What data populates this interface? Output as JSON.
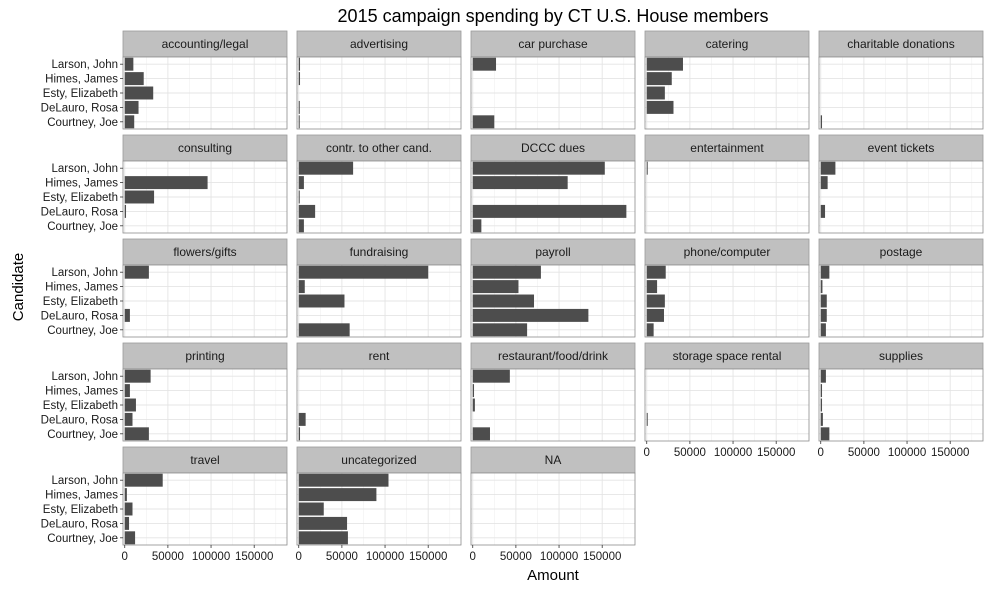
{
  "chart_data": {
    "type": "bar",
    "orientation": "horizontal",
    "faceted": true,
    "title": "2015 campaign spending by CT U.S. House members",
    "xlabel": "Amount",
    "ylabel": "Candidate",
    "candidates": [
      "Larson, John",
      "Himes, James",
      "Esty, Elizabeth",
      "DeLauro, Rosa",
      "Courtney, Joe"
    ],
    "xlim": [
      -2000,
      188000
    ],
    "x_ticks": [
      0,
      50000,
      100000,
      150000
    ],
    "x_tick_labels": [
      "0",
      "50000",
      "100000",
      "150000"
    ],
    "bar_color": "#4d4d4d",
    "strip_color": "#c0c0c0",
    "grid": true,
    "facets": [
      {
        "label": "accounting/legal",
        "values": [
          10000,
          22000,
          33000,
          16000,
          11000
        ]
      },
      {
        "label": "advertising",
        "values": [
          1500,
          1500,
          0,
          1200,
          500
        ]
      },
      {
        "label": "car purchase",
        "values": [
          27000,
          0,
          0,
          0,
          25000
        ]
      },
      {
        "label": "catering",
        "values": [
          42000,
          29000,
          21000,
          31000,
          0
        ]
      },
      {
        "label": "charitable donations",
        "values": [
          0,
          0,
          0,
          0,
          1500
        ]
      },
      {
        "label": "consulting",
        "values": [
          0,
          96000,
          34000,
          1500,
          0
        ]
      },
      {
        "label": "contr. to other cand.",
        "values": [
          63000,
          6000,
          1000,
          19000,
          6000
        ]
      },
      {
        "label": "DCCC dues",
        "values": [
          153000,
          110000,
          0,
          178000,
          10000
        ]
      },
      {
        "label": "entertainment",
        "values": [
          1000,
          0,
          0,
          0,
          0
        ]
      },
      {
        "label": "event tickets",
        "values": [
          17000,
          8000,
          0,
          5000,
          0
        ]
      },
      {
        "label": "flowers/gifts",
        "values": [
          28000,
          0,
          0,
          6000,
          0
        ]
      },
      {
        "label": "fundraising",
        "values": [
          150000,
          7000,
          53000,
          0,
          59000
        ]
      },
      {
        "label": "payroll",
        "values": [
          79000,
          53000,
          71000,
          134000,
          63000
        ]
      },
      {
        "label": "phone/computer",
        "values": [
          22000,
          12000,
          21000,
          20000,
          8000
        ]
      },
      {
        "label": "postage",
        "values": [
          10000,
          2000,
          7000,
          7000,
          6000
        ]
      },
      {
        "label": "printing",
        "values": [
          30000,
          6000,
          13000,
          9000,
          28000
        ]
      },
      {
        "label": "rent",
        "values": [
          0,
          0,
          0,
          8000,
          1500
        ]
      },
      {
        "label": "restaurant/food/drink",
        "values": [
          43000,
          1500,
          2500,
          0,
          20000
        ]
      },
      {
        "label": "storage space rental",
        "values": [
          0,
          0,
          0,
          1000,
          0
        ]
      },
      {
        "label": "supplies",
        "values": [
          6000,
          1500,
          1500,
          2500,
          10000
        ]
      },
      {
        "label": "travel",
        "values": [
          44000,
          2500,
          9000,
          5000,
          12000
        ]
      },
      {
        "label": "uncategorized",
        "values": [
          104000,
          90000,
          29000,
          56000,
          57000
        ]
      },
      {
        "label": "NA",
        "values": [
          0,
          0,
          0,
          0,
          0
        ]
      }
    ]
  }
}
